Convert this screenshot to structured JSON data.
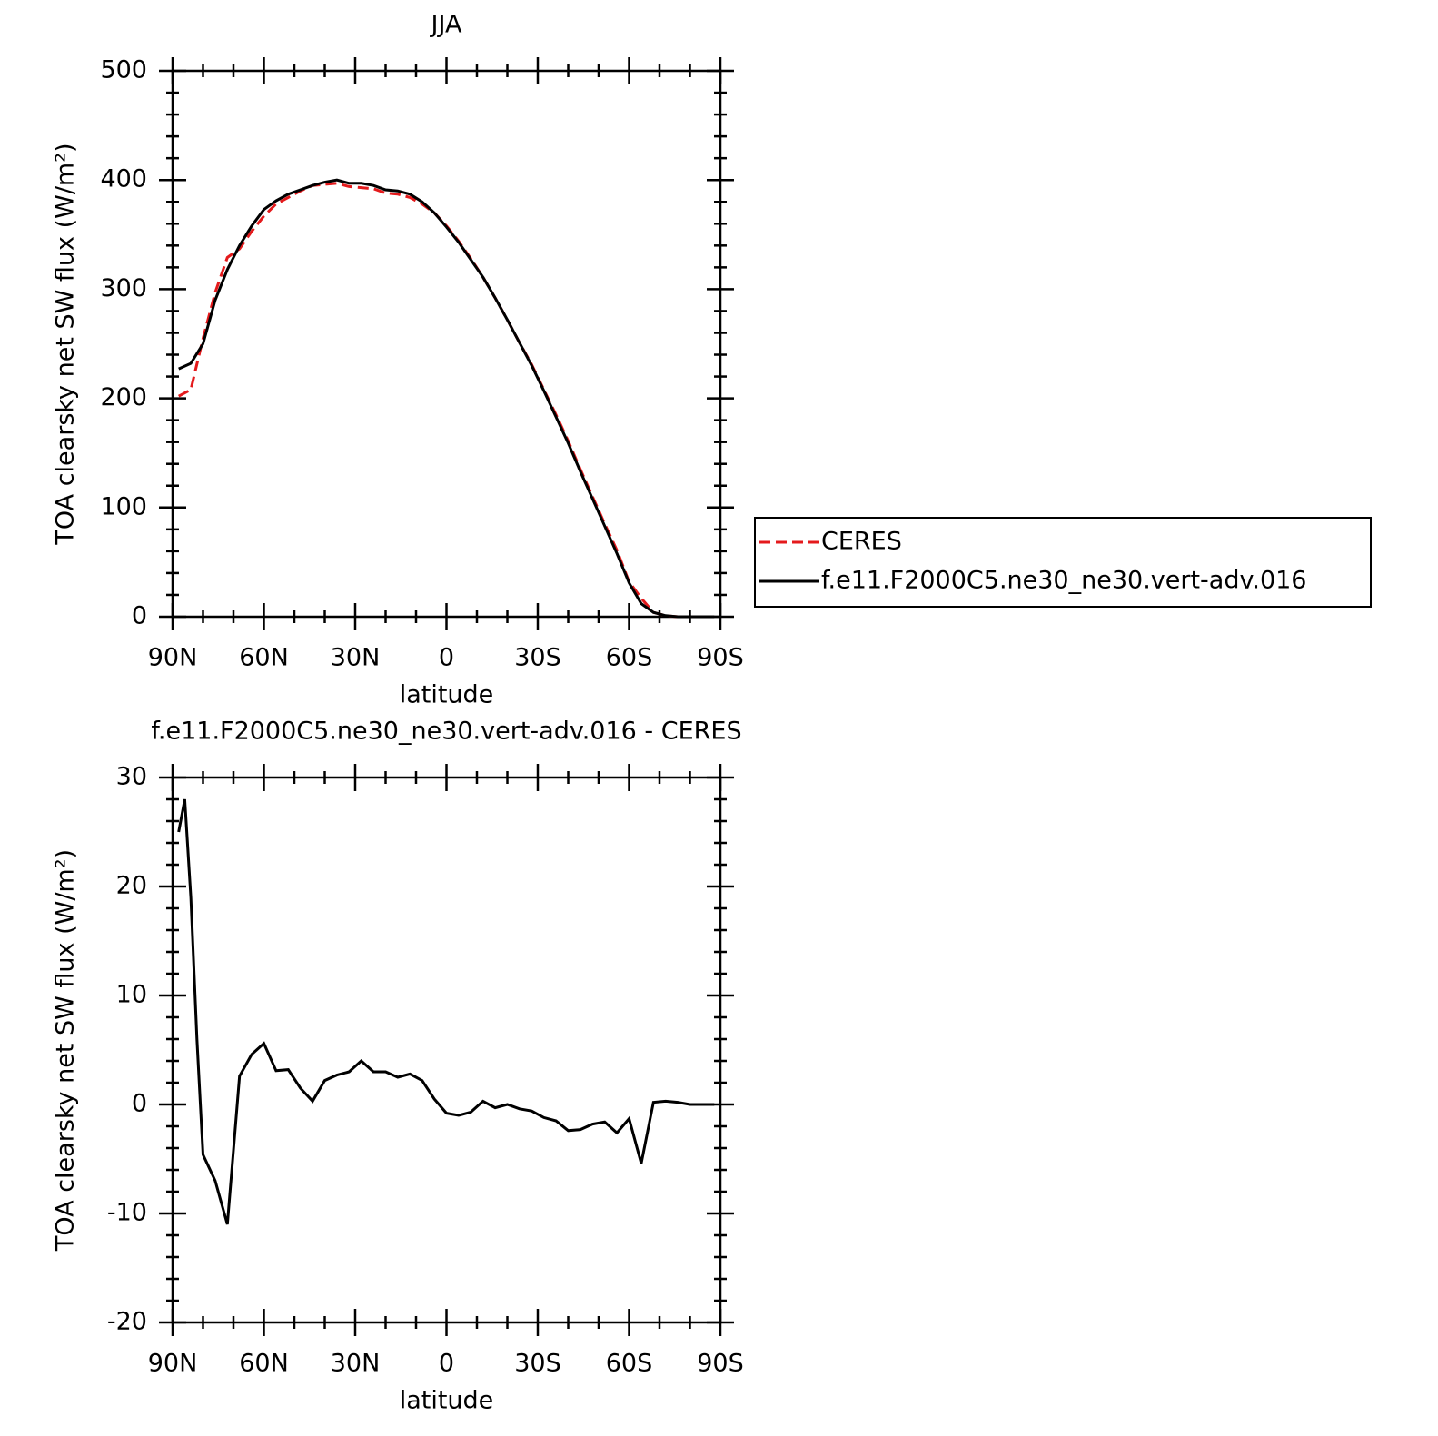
{
  "chart_data": [
    {
      "type": "line",
      "title": "JJA",
      "ylabel": "TOA clearsky net SW flux (W/m²)",
      "xlabel": "latitude",
      "xlim": [
        90,
        -90
      ],
      "xticks": [
        {
          "value": 90,
          "label": "90N"
        },
        {
          "value": 60,
          "label": "60N"
        },
        {
          "value": 30,
          "label": "30N"
        },
        0,
        {
          "value": -30,
          "label": "30S"
        },
        {
          "value": -60,
          "label": "60S"
        },
        {
          "value": -90,
          "label": "90S"
        }
      ],
      "ylim": [
        0,
        500
      ],
      "yticks": [
        0,
        100,
        200,
        300,
        400,
        500
      ],
      "grid": false,
      "legend": "right",
      "x": [
        88,
        84,
        80,
        76,
        72,
        68,
        64,
        60,
        56,
        52,
        48,
        44,
        40,
        36,
        32,
        28,
        24,
        20,
        16,
        12,
        8,
        4,
        0,
        -4,
        -8,
        -12,
        -16,
        -20,
        -24,
        -28,
        -32,
        -36,
        -40,
        -44,
        -48,
        -52,
        -56,
        -60,
        -64,
        -68,
        -72,
        -76,
        -80,
        -84,
        -88
      ],
      "series": [
        {
          "name": "CERES",
          "color": "#e41a1c",
          "line_style": "dashed",
          "values": [
            202,
            208,
            255,
            297,
            329,
            337,
            353,
            367,
            378,
            384,
            390,
            395,
            396,
            397,
            394,
            393,
            392,
            388,
            387,
            384,
            378,
            370,
            358,
            344,
            328,
            311,
            292,
            272,
            251,
            231,
            208,
            185,
            161,
            135,
            110,
            85,
            61,
            32,
            17,
            4,
            1,
            0,
            0,
            0,
            0
          ]
        },
        {
          "name": "f.e11.F2000C5.ne30_ne30.vert-adv.016",
          "color": "#000000",
          "line_style": "solid",
          "values": [
            227,
            232,
            250,
            290,
            318,
            340,
            358,
            373,
            381,
            387,
            391,
            395,
            398,
            400,
            397,
            397,
            395,
            391,
            390,
            387,
            380,
            370,
            357,
            343,
            327,
            311,
            292,
            272,
            251,
            230,
            207,
            183,
            159,
            133,
            108,
            83,
            58,
            31,
            12,
            4,
            1,
            0,
            0,
            0,
            0
          ]
        }
      ]
    },
    {
      "type": "line",
      "title": "f.e11.F2000C5.ne30_ne30.vert-adv.016 - CERES",
      "ylabel": "TOA clearsky net SW flux (W/m²)",
      "xlabel": "latitude",
      "xlim": [
        90,
        -90
      ],
      "xticks": [
        {
          "value": 90,
          "label": "90N"
        },
        {
          "value": 60,
          "label": "60N"
        },
        {
          "value": 30,
          "label": "30N"
        },
        0,
        {
          "value": -30,
          "label": "30S"
        },
        {
          "value": -60,
          "label": "60S"
        },
        {
          "value": -90,
          "label": "90S"
        }
      ],
      "ylim": [
        -20,
        30
      ],
      "yticks": [
        -20,
        -10,
        0,
        10,
        20,
        30
      ],
      "grid": false,
      "x": [
        88,
        86,
        84,
        82,
        80,
        76,
        72,
        68,
        64,
        60,
        56,
        52,
        48,
        44,
        40,
        36,
        32,
        28,
        24,
        20,
        16,
        12,
        8,
        4,
        0,
        -4,
        -8,
        -12,
        -16,
        -20,
        -24,
        -28,
        -32,
        -36,
        -40,
        -44,
        -48,
        -52,
        -56,
        -60,
        -64,
        -68,
        -72,
        -76,
        -80,
        -84,
        -88
      ],
      "series": [
        {
          "color": "#000000",
          "line_style": "solid",
          "values": [
            25,
            28,
            19,
            6,
            -4.6,
            -7,
            -11,
            2.6,
            4.6,
            5.6,
            3.1,
            3.2,
            1.5,
            0.3,
            2.2,
            2.7,
            3.0,
            4.0,
            3.0,
            3.0,
            2.5,
            2.8,
            2.2,
            0.5,
            -0.8,
            -1.0,
            -0.7,
            0.3,
            -0.3,
            0,
            -0.4,
            -0.6,
            -1.2,
            -1.5,
            -2.4,
            -2.3,
            -1.8,
            -1.6,
            -2.6,
            -1.3,
            -5.4,
            0.2,
            0.3,
            0.2,
            0,
            0,
            0
          ]
        }
      ]
    }
  ]
}
